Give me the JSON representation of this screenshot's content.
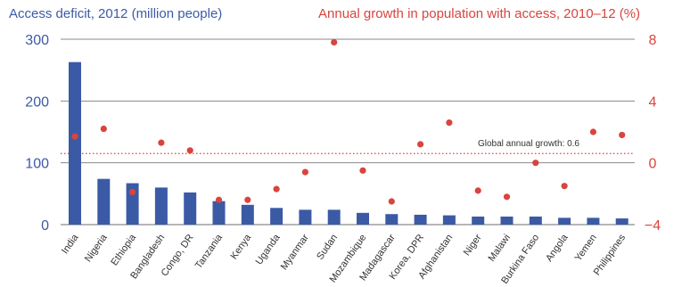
{
  "chart_data": {
    "type": "bar",
    "left_title": "Access deficit, 2012 (million people)",
    "right_title": "Annual growth in population with access, 2010–12 (%)",
    "categories": [
      "India",
      "Nigeria",
      "Ethiopia",
      "Bangladesh",
      "Congo, DR",
      "Tanzania",
      "Kenya",
      "Uganda",
      "Myanmar",
      "Sudan",
      "Mozambique",
      "Madagascar",
      "Korea, DPR",
      "Afghanistan",
      "Niger",
      "Malawi",
      "Burkina Faso",
      "Angola",
      "Yemen",
      "Philippines"
    ],
    "series": [
      {
        "axis": "left",
        "values": [
          263,
          74,
          67,
          60,
          52,
          38,
          32,
          27,
          24,
          24,
          19,
          17,
          16,
          15,
          13,
          13,
          13,
          11,
          11,
          10
        ]
      },
      {
        "axis": "right",
        "values": [
          1.7,
          2.2,
          -1.9,
          1.3,
          0.8,
          -2.4,
          -2.4,
          -1.7,
          -0.6,
          7.8,
          -0.5,
          -2.5,
          1.2,
          2.6,
          -1.8,
          -2.2,
          0.0,
          -1.5,
          2.0,
          1.8
        ]
      }
    ],
    "left_axis": {
      "ylim": [
        0,
        300
      ],
      "ticks": [
        0,
        100,
        200,
        300
      ]
    },
    "right_axis": {
      "ylim": [
        -4,
        8
      ],
      "ticks": [
        -4,
        0,
        4,
        8
      ],
      "tick_labels": [
        "−4",
        "0",
        "4",
        "8"
      ]
    },
    "reference_line": {
      "axis": "right",
      "value": 0.6,
      "label": "Global annual growth: 0.6"
    },
    "grid": true,
    "colors": {
      "bars": "#3b5aa6",
      "points": "#d9443e",
      "grid": "#8a8a8a",
      "reference": "#d9443e"
    }
  }
}
